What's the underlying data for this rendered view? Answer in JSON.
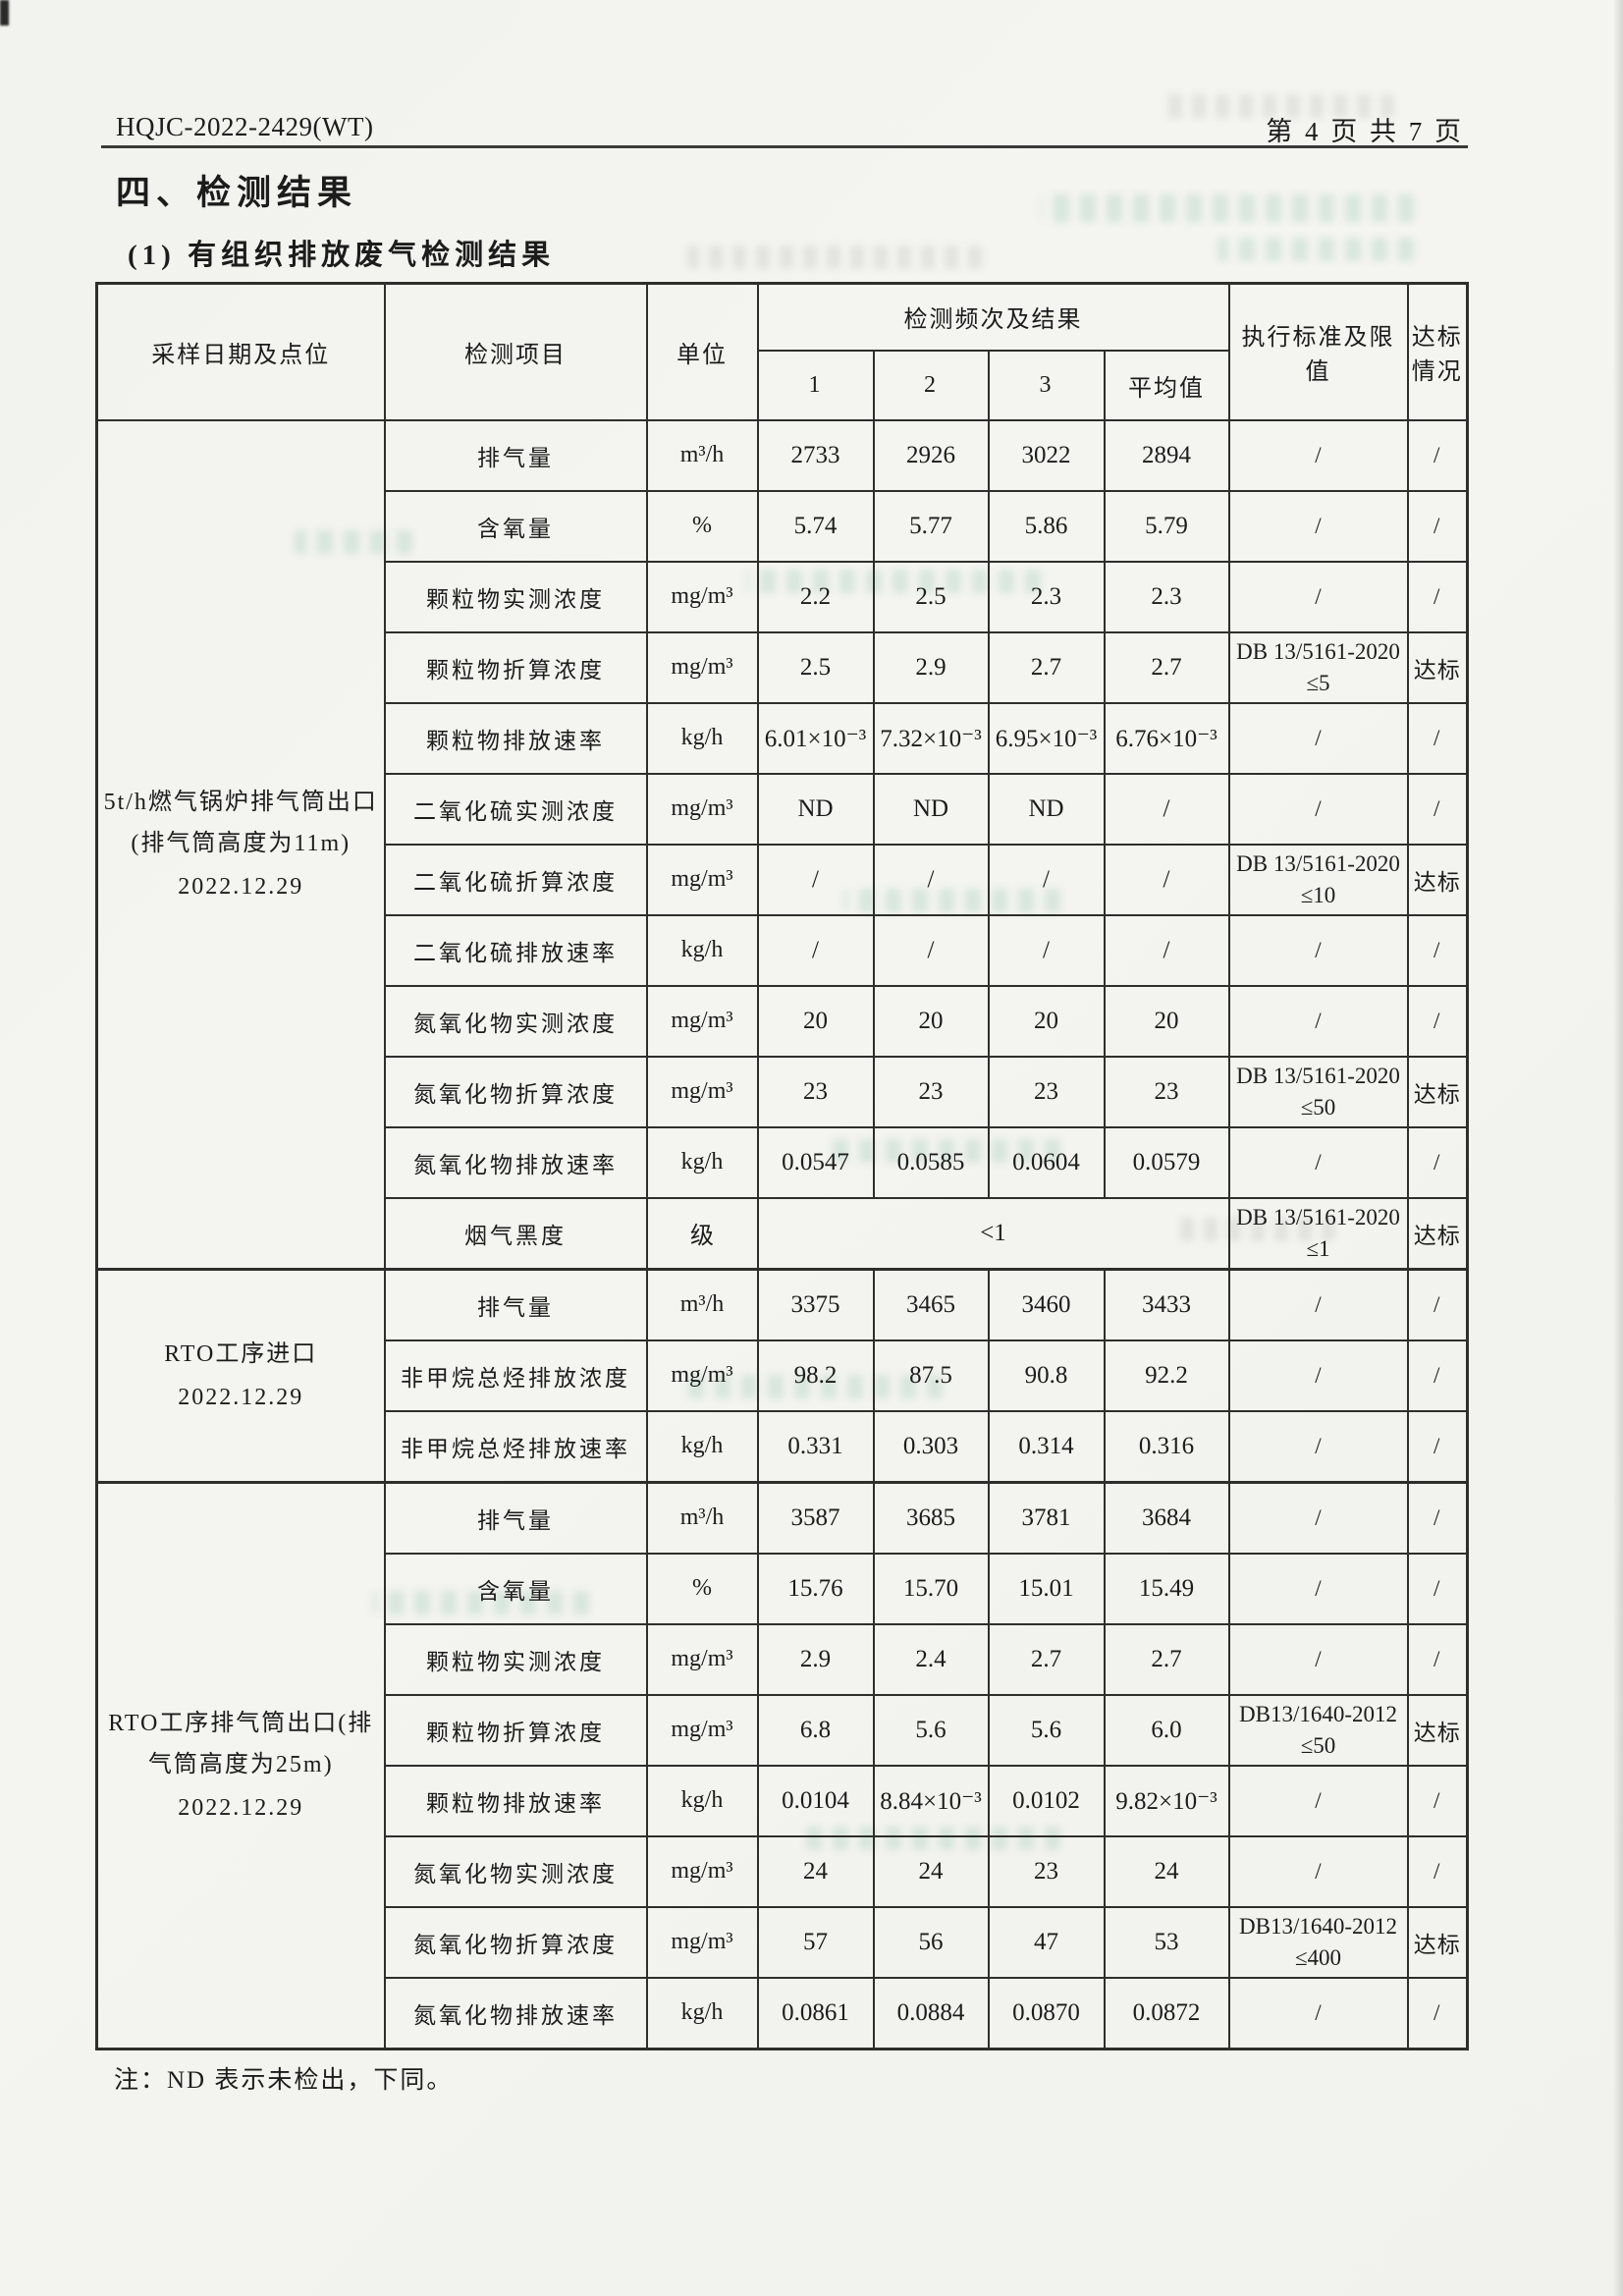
{
  "page": {
    "header_left": "HQJC-2022-2429(WT)",
    "header_right": "第 4 页 共 7 页",
    "section_title": "四、检测结果",
    "subsection_title": "(1) 有组织排放废气检测结果",
    "footnote": "注：ND 表示未检出，下同。"
  },
  "table": {
    "column_headers": {
      "sample": "采样日期及点位",
      "item": "检测项目",
      "unit": "单位",
      "frequency_group": "检测频次及结果",
      "run1": "1",
      "run2": "2",
      "run3": "3",
      "average": "平均值",
      "standard": "执行标准及限值",
      "compliance": "达标情况"
    },
    "sections": [
      {
        "location": "5t/h燃气锅炉排气筒出口(排气筒高度为11m)",
        "date": "2022.12.29",
        "rows": [
          {
            "item": "排气量",
            "unit": "m³/h",
            "v1": "2733",
            "v2": "2926",
            "v3": "3022",
            "avg": "2894",
            "standard": [
              "/"
            ],
            "compliance": "/"
          },
          {
            "item": "含氧量",
            "unit": "%",
            "v1": "5.74",
            "v2": "5.77",
            "v3": "5.86",
            "avg": "5.79",
            "standard": [
              "/"
            ],
            "compliance": "/"
          },
          {
            "item": "颗粒物实测浓度",
            "unit": "mg/m³",
            "v1": "2.2",
            "v2": "2.5",
            "v3": "2.3",
            "avg": "2.3",
            "standard": [
              "/"
            ],
            "compliance": "/"
          },
          {
            "item": "颗粒物折算浓度",
            "unit": "mg/m³",
            "v1": "2.5",
            "v2": "2.9",
            "v3": "2.7",
            "avg": "2.7",
            "standard": [
              "DB 13/5161-2020",
              "≤5"
            ],
            "compliance": "达标"
          },
          {
            "item": "颗粒物排放速率",
            "unit": "kg/h",
            "v1": "6.01×10⁻³",
            "v2": "7.32×10⁻³",
            "v3": "6.95×10⁻³",
            "avg": "6.76×10⁻³",
            "standard": [
              "/"
            ],
            "compliance": "/"
          },
          {
            "item": "二氧化硫实测浓度",
            "unit": "mg/m³",
            "v1": "ND",
            "v2": "ND",
            "v3": "ND",
            "avg": "/",
            "standard": [
              "/"
            ],
            "compliance": "/"
          },
          {
            "item": "二氧化硫折算浓度",
            "unit": "mg/m³",
            "v1": "/",
            "v2": "/",
            "v3": "/",
            "avg": "/",
            "standard": [
              "DB 13/5161-2020",
              "≤10"
            ],
            "compliance": "达标"
          },
          {
            "item": "二氧化硫排放速率",
            "unit": "kg/h",
            "v1": "/",
            "v2": "/",
            "v3": "/",
            "avg": "/",
            "standard": [
              "/"
            ],
            "compliance": "/"
          },
          {
            "item": "氮氧化物实测浓度",
            "unit": "mg/m³",
            "v1": "20",
            "v2": "20",
            "v3": "20",
            "avg": "20",
            "standard": [
              "/"
            ],
            "compliance": "/"
          },
          {
            "item": "氮氧化物折算浓度",
            "unit": "mg/m³",
            "v1": "23",
            "v2": "23",
            "v3": "23",
            "avg": "23",
            "standard": [
              "DB 13/5161-2020",
              "≤50"
            ],
            "compliance": "达标"
          },
          {
            "item": "氮氧化物排放速率",
            "unit": "kg/h",
            "v1": "0.0547",
            "v2": "0.0585",
            "v3": "0.0604",
            "avg": "0.0579",
            "standard": [
              "/"
            ],
            "compliance": "/"
          },
          {
            "item": "烟气黑度",
            "unit": "级",
            "merged": "<1",
            "standard": [
              "DB 13/5161-2020",
              "≤1"
            ],
            "compliance": "达标"
          }
        ]
      },
      {
        "location": "RTO工序进口",
        "date": "2022.12.29",
        "rows": [
          {
            "item": "排气量",
            "unit": "m³/h",
            "v1": "3375",
            "v2": "3465",
            "v3": "3460",
            "avg": "3433",
            "standard": [
              "/"
            ],
            "compliance": "/"
          },
          {
            "item": "非甲烷总烃排放浓度",
            "unit": "mg/m³",
            "v1": "98.2",
            "v2": "87.5",
            "v3": "90.8",
            "avg": "92.2",
            "standard": [
              "/"
            ],
            "compliance": "/"
          },
          {
            "item": "非甲烷总烃排放速率",
            "unit": "kg/h",
            "v1": "0.331",
            "v2": "0.303",
            "v3": "0.314",
            "avg": "0.316",
            "standard": [
              "/"
            ],
            "compliance": "/"
          }
        ]
      },
      {
        "location": "RTO工序排气筒出口(排气筒高度为25m)",
        "date": "2022.12.29",
        "rows": [
          {
            "item": "排气量",
            "unit": "m³/h",
            "v1": "3587",
            "v2": "3685",
            "v3": "3781",
            "avg": "3684",
            "standard": [
              "/"
            ],
            "compliance": "/"
          },
          {
            "item": "含氧量",
            "unit": "%",
            "v1": "15.76",
            "v2": "15.70",
            "v3": "15.01",
            "avg": "15.49",
            "standard": [
              "/"
            ],
            "compliance": "/"
          },
          {
            "item": "颗粒物实测浓度",
            "unit": "mg/m³",
            "v1": "2.9",
            "v2": "2.4",
            "v3": "2.7",
            "avg": "2.7",
            "standard": [
              "/"
            ],
            "compliance": "/"
          },
          {
            "item": "颗粒物折算浓度",
            "unit": "mg/m³",
            "v1": "6.8",
            "v2": "5.6",
            "v3": "5.6",
            "avg": "6.0",
            "standard": [
              "DB13/1640-2012",
              "≤50"
            ],
            "compliance": "达标"
          },
          {
            "item": "颗粒物排放速率",
            "unit": "kg/h",
            "v1": "0.0104",
            "v2": "8.84×10⁻³",
            "v3": "0.0102",
            "avg": "9.82×10⁻³",
            "standard": [
              "/"
            ],
            "compliance": "/"
          },
          {
            "item": "氮氧化物实测浓度",
            "unit": "mg/m³",
            "v1": "24",
            "v2": "24",
            "v3": "23",
            "avg": "24",
            "standard": [
              "/"
            ],
            "compliance": "/"
          },
          {
            "item": "氮氧化物折算浓度",
            "unit": "mg/m³",
            "v1": "57",
            "v2": "56",
            "v3": "47",
            "avg": "53",
            "standard": [
              "DB13/1640-2012",
              "≤400"
            ],
            "compliance": "达标"
          },
          {
            "item": "氮氧化物排放速率",
            "unit": "kg/h",
            "v1": "0.0861",
            "v2": "0.0884",
            "v3": "0.0870",
            "avg": "0.0872",
            "standard": [
              "/"
            ],
            "compliance": "/"
          }
        ]
      }
    ]
  }
}
